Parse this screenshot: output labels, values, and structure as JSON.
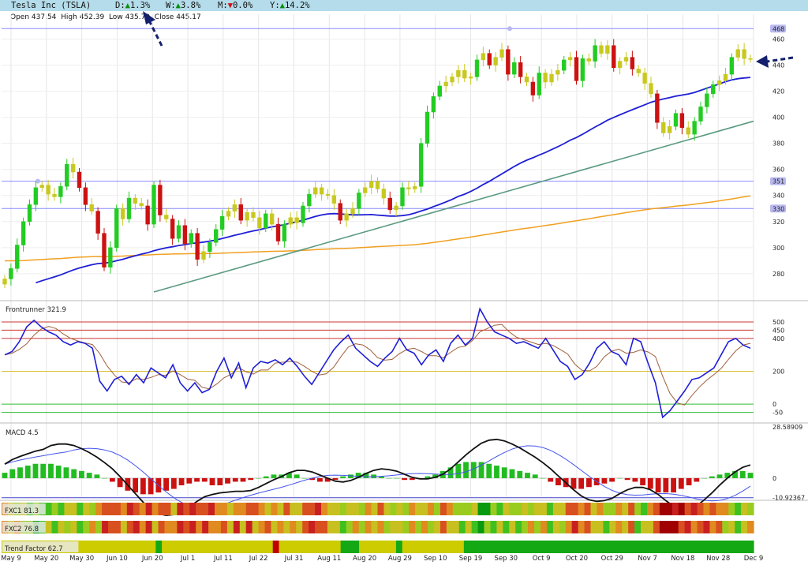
{
  "header": {
    "symbol": "Tesla Inc (TSLA)",
    "day_label": "D:",
    "day_arrow": "▲",
    "day_value": "1.3%",
    "week_label": "W:",
    "week_arrow": "▲",
    "week_value": "3.8%",
    "month_label": "M:",
    "month_arrow": "▼",
    "month_value": "0.0%",
    "year_label": "Y:",
    "year_arrow": "▲",
    "year_value": "14.2%",
    "up_color": "#0a8f0a",
    "down_color": "#d01010"
  },
  "ohlc": {
    "open_label": "Open",
    "open": "437.54",
    "high_label": "High",
    "high": "452.39",
    "low_label": "Low",
    "low": "435.70",
    "close_label": "Close",
    "close": "445.17"
  },
  "annotations": [
    "dashed-arrow-to-daily-change",
    "dashed-arrow-to-last-price"
  ],
  "chart_data": [
    {
      "type": "candlestick",
      "panel": "price",
      "ylim": [
        266,
        473
      ],
      "yticks": [
        280,
        300,
        320,
        340,
        360,
        380,
        400,
        420,
        440,
        460
      ],
      "level_lines": [
        330,
        351,
        468
      ],
      "level_labels": [
        "330",
        "351",
        "468"
      ],
      "series": [
        {
          "key": "sma50"
        },
        {
          "key": "sma200"
        },
        {
          "key": "trendline"
        }
      ],
      "x_labels": [
        "May 9",
        "May 20",
        "May 30",
        "Jun 10",
        "Jun 20",
        "Jul 1",
        "Jul 11",
        "Jul 22",
        "Jul 31",
        "Aug 11",
        "Aug 20",
        "Aug 29",
        "Sep 10",
        "Sep 19",
        "Sep 30",
        "Oct 9",
        "Oct 20",
        "Oct 29",
        "Nov 7",
        "Nov 18",
        "Nov 28",
        "Dec 9"
      ],
      "candles_close": [
        276,
        284,
        302,
        320,
        333,
        346,
        348,
        341,
        339,
        347,
        364,
        358,
        346,
        333,
        328,
        311,
        285,
        300,
        330,
        322,
        338,
        334,
        332,
        318,
        348,
        325,
        322,
        307,
        317,
        303,
        311,
        291,
        297,
        304,
        314,
        324,
        328,
        333,
        321,
        327,
        323,
        315,
        326,
        318,
        305,
        318,
        323,
        319,
        332,
        341,
        346,
        341,
        340,
        334,
        321,
        326,
        330,
        342,
        346,
        351,
        345,
        338,
        329,
        332,
        346,
        345,
        347,
        380,
        404,
        416,
        424,
        427,
        431,
        436,
        430,
        431,
        444,
        449,
        440,
        446,
        452,
        433,
        442,
        431,
        427,
        417,
        434,
        427,
        433,
        436,
        444,
        446,
        428,
        445,
        443,
        455,
        449,
        455,
        438,
        443,
        446,
        437,
        434,
        426,
        418,
        396,
        388,
        393,
        403,
        392,
        387,
        397,
        408,
        418,
        425,
        428,
        433,
        446,
        452,
        445,
        445
      ]
    },
    {
      "type": "line",
      "panel": "oscillator",
      "title": "Frontrunner 321.9",
      "ylim": [
        -100,
        620
      ],
      "yticks": [
        -50,
        0,
        200,
        400,
        450,
        500
      ],
      "series": [
        {
          "key": "frontrunner",
          "values": [
            300,
            320,
            380,
            470,
            510,
            470,
            440,
            420,
            380,
            360,
            380,
            370,
            340,
            140,
            80,
            150,
            170,
            120,
            180,
            130,
            220,
            190,
            160,
            240,
            130,
            80,
            130,
            70,
            90,
            200,
            280,
            160,
            250,
            100,
            220,
            260,
            250,
            270,
            240,
            280,
            230,
            170,
            120,
            190,
            260,
            330,
            380,
            420,
            340,
            300,
            260,
            230,
            280,
            320,
            400,
            330,
            310,
            240,
            300,
            330,
            260,
            370,
            420,
            360,
            400,
            580,
            500,
            440,
            420,
            400,
            370,
            380,
            360,
            340,
            400,
            330,
            260,
            230,
            150,
            180,
            250,
            340,
            380,
            320,
            300,
            240,
            400,
            380,
            250,
            130,
            -80,
            -40,
            20,
            80,
            150,
            160,
            190,
            220,
            300,
            380,
            400,
            360,
            340
          ]
        },
        {
          "key": "frontrunner_signal"
        }
      ],
      "hlines": [
        -50,
        0,
        200,
        400,
        450,
        500
      ]
    },
    {
      "type": "bar+line",
      "panel": "macd",
      "title": "MACD 4.5",
      "ylim": [
        -11.5,
        29.5
      ],
      "yticks": [
        -10.92367,
        0,
        28.58909
      ],
      "series": [
        {
          "key": "macd_histogram",
          "values": [
            3,
            5,
            6,
            7,
            8,
            8,
            8,
            7,
            6,
            5,
            4,
            3,
            2,
            0,
            -2,
            -5,
            -7,
            -8,
            -9,
            -9,
            -8,
            -7,
            -6,
            -4,
            -3,
            -2,
            -2,
            -4,
            -4,
            -3,
            -2,
            -2,
            -1,
            0,
            1,
            2,
            2,
            3,
            2,
            0,
            -1,
            -2,
            -2,
            -1,
            1,
            2,
            3,
            3,
            2,
            1,
            0,
            0,
            -1,
            -1,
            0,
            1,
            2,
            4,
            6,
            8,
            9,
            9,
            9,
            8,
            7,
            6,
            5,
            4,
            3,
            2,
            0,
            -2,
            -4,
            -5,
            -6,
            -6,
            -5,
            -4,
            -3,
            -2,
            0,
            -1,
            -2,
            -4,
            -6,
            -8,
            -8,
            -8,
            -6,
            -4,
            -2,
            0,
            1,
            2,
            3,
            4,
            4,
            3
          ]
        },
        {
          "key": "macd_line"
        },
        {
          "key": "macd_signal"
        }
      ]
    },
    {
      "type": "heatmap",
      "panel": "fxc1",
      "title": "FXC1 81.3"
    },
    {
      "type": "heatmap",
      "panel": "fxc2",
      "title": "FXC2 76.8"
    },
    {
      "type": "heatmap",
      "panel": "trend",
      "title": "Trend Factor 62.7",
      "values": [
        2,
        2,
        2,
        2,
        2,
        2,
        2,
        2,
        2,
        2,
        2,
        2,
        2,
        2,
        2,
        2,
        2,
        2,
        2,
        2,
        2,
        2,
        2,
        2,
        2,
        1,
        2,
        2,
        2,
        2,
        2,
        2,
        2,
        2,
        2,
        2,
        2,
        2,
        2,
        2,
        2,
        2,
        2,
        2,
        0,
        2,
        2,
        2,
        2,
        2,
        2,
        2,
        2,
        2,
        2,
        1,
        1,
        1,
        2,
        2,
        2,
        2,
        2,
        2,
        1,
        2,
        2,
        2,
        2,
        2,
        2,
        2,
        2,
        2,
        2,
        1,
        1,
        1,
        1,
        1,
        1,
        1,
        1,
        1,
        1,
        1,
        1,
        1,
        1,
        1,
        1,
        1,
        1,
        1,
        1,
        1,
        1,
        1,
        1,
        1,
        1,
        1,
        1,
        1,
        1,
        1,
        1,
        1,
        1,
        1,
        1,
        1,
        1,
        1,
        1,
        1,
        1,
        1,
        1,
        1,
        1,
        1
      ]
    }
  ],
  "colors": {
    "sma50": "#1f1fd6",
    "sma200": "#f0a020",
    "trendline": "#5a9a80",
    "candle_up": "#22cc22",
    "candle_down": "#cc1111",
    "candle_neutral": "#c8c820",
    "level_line": "#8888ff",
    "macd_pos": "#22bb22",
    "macd_neg": "#cc1111"
  }
}
